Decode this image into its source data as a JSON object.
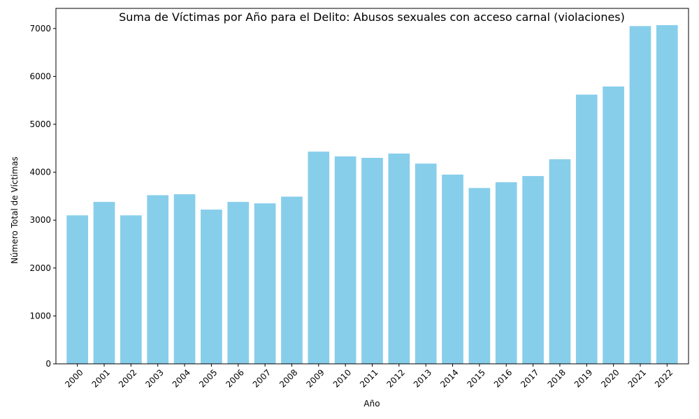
{
  "chart_data": {
    "type": "bar",
    "title": "Suma de Víctimas por Año para el Delito: Abusos sexuales con acceso carnal (violaciones)",
    "xlabel": "Año",
    "ylabel": "Número Total de Víctimas",
    "categories": [
      "2000",
      "2001",
      "2002",
      "2003",
      "2004",
      "2005",
      "2006",
      "2007",
      "2008",
      "2009",
      "2010",
      "2011",
      "2012",
      "2013",
      "2014",
      "2015",
      "2016",
      "2017",
      "2018",
      "2019",
      "2020",
      "2021",
      "2022"
    ],
    "values": [
      3100,
      3380,
      3100,
      3520,
      3540,
      3220,
      3380,
      3350,
      3490,
      4430,
      4330,
      4300,
      4390,
      4180,
      3950,
      3670,
      3790,
      3920,
      4270,
      5620,
      5790,
      7050,
      7070
    ],
    "ylim": [
      0,
      7420
    ],
    "yticks": [
      0,
      1000,
      2000,
      3000,
      4000,
      5000,
      6000,
      7000
    ],
    "bar_color": "#87ceeb",
    "grid": false,
    "legend": "none"
  }
}
